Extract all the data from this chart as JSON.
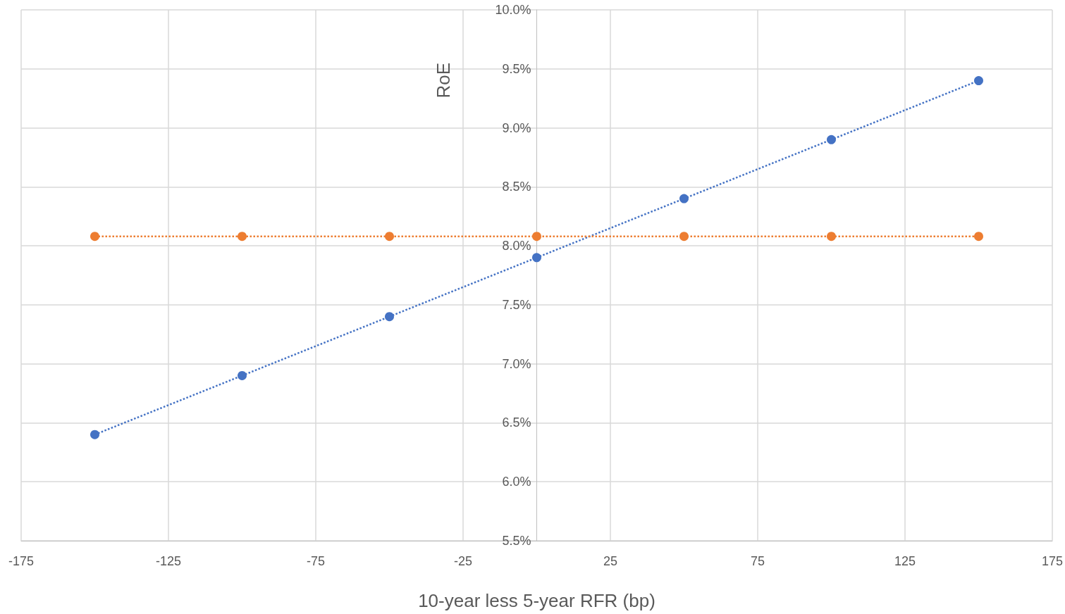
{
  "chart_data": {
    "type": "line",
    "xlabel": "10-year less 5-year RFR (bp)",
    "ylabel": "RoE",
    "x": [
      -150,
      -100,
      -50,
      0,
      50,
      100,
      150
    ],
    "series": [
      {
        "color": "#4472c4",
        "values": [
          6.4,
          6.9,
          7.4,
          7.9,
          8.4,
          8.9,
          9.4
        ]
      },
      {
        "color": "#ed7d31",
        "values": [
          8.08,
          8.08,
          8.08,
          8.08,
          8.08,
          8.08,
          8.08
        ]
      }
    ],
    "xlim": [
      -175,
      175
    ],
    "xticks": [
      -175,
      -125,
      -75,
      -25,
      25,
      75,
      125,
      175
    ],
    "ylim": [
      5.5,
      10
    ],
    "yticks": [
      {
        "value": 5.5,
        "label": "5.5%"
      },
      {
        "value": 6,
        "label": "6.0%"
      },
      {
        "value": 6.5,
        "label": "6.5%"
      },
      {
        "value": 7,
        "label": "7.0%"
      },
      {
        "value": 7.5,
        "label": "7.5%"
      },
      {
        "value": 8,
        "label": "8.0%"
      },
      {
        "value": 8.5,
        "label": "8.5%"
      },
      {
        "value": 9,
        "label": "9.0%"
      },
      {
        "value": 9.5,
        "label": "9.5%"
      },
      {
        "value": 10,
        "label": "10.0%"
      }
    ],
    "grid": true,
    "marker": "circle",
    "line_style": "dotted"
  }
}
